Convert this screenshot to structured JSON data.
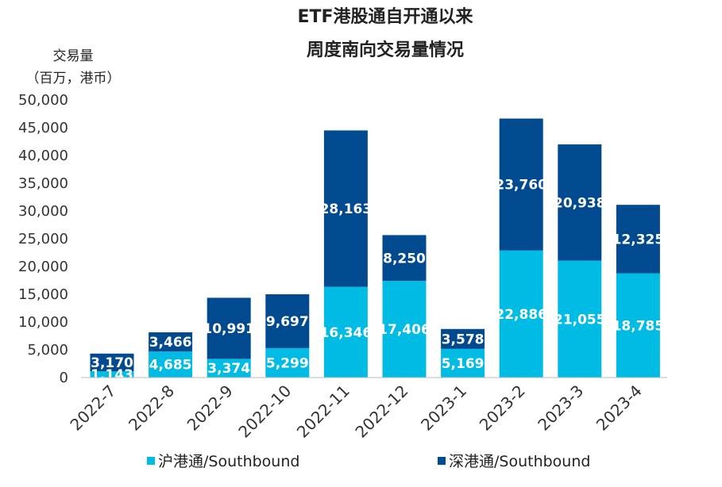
{
  "chart_data": {
    "type": "bar",
    "stacked": true,
    "title": [
      "ETF港股通自开通以来",
      "周度南向交易量情况"
    ],
    "ylabel": [
      "交易量",
      "（百万，港币）"
    ],
    "xlabel": "",
    "ylim": [
      0,
      50000
    ],
    "yticks": [
      "0",
      "5,000",
      "10,000",
      "15,000",
      "20,000",
      "25,000",
      "30,000",
      "35,000",
      "40,000",
      "45,000",
      "50,000"
    ],
    "categories": [
      "2022-7",
      "2022-8",
      "2022-9",
      "2022-10",
      "2022-11",
      "2022-12",
      "2023-1",
      "2023-2",
      "2023-3",
      "2023-4"
    ],
    "series": [
      {
        "name": "沪港通/Southbound",
        "color": "#00BBE4",
        "values": [
          1143,
          4685,
          3374,
          5299,
          16346,
          17406,
          5169,
          22886,
          21055,
          18785
        ],
        "labels": [
          "1,143",
          "4,685",
          "3,374",
          "5,299",
          "16,346",
          "17,406",
          "5,169",
          "22,886",
          "21,055",
          "18,785"
        ]
      },
      {
        "name": "深港通/Southbound",
        "color": "#024A8F",
        "values": [
          3170,
          3466,
          10991,
          9697,
          28163,
          8250,
          3578,
          23760,
          20938,
          12325
        ],
        "labels": [
          "3,170",
          "3,466",
          "10,991",
          "9,697",
          "28,163",
          "8,250",
          "3,578",
          "23,760",
          "20,938",
          "12,325"
        ]
      }
    ],
    "grid": false,
    "legend": "bottom"
  }
}
